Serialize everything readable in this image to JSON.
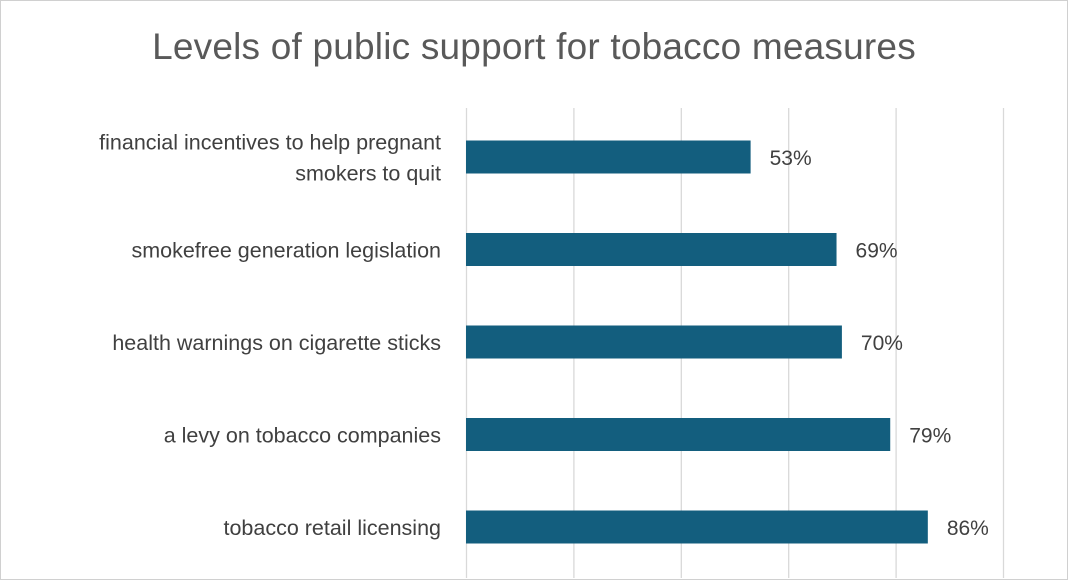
{
  "chart_data": {
    "type": "bar",
    "orientation": "horizontal",
    "title": "Levels of public support for tobacco measures",
    "categories": [
      [
        "financial incentives to help pregnant",
        "smokers to quit"
      ],
      [
        "smokefree generation legislation"
      ],
      [
        "health warnings on cigarette sticks"
      ],
      [
        "a levy on tobacco companies"
      ],
      [
        "tobacco retail licensing"
      ]
    ],
    "values": [
      53,
      69,
      70,
      79,
      86
    ],
    "data_labels": [
      "53%",
      "69%",
      "70%",
      "79%",
      "86%"
    ],
    "xlim": [
      0,
      100
    ],
    "grid": true,
    "legend": "none",
    "bar_color": "#135e7e"
  }
}
